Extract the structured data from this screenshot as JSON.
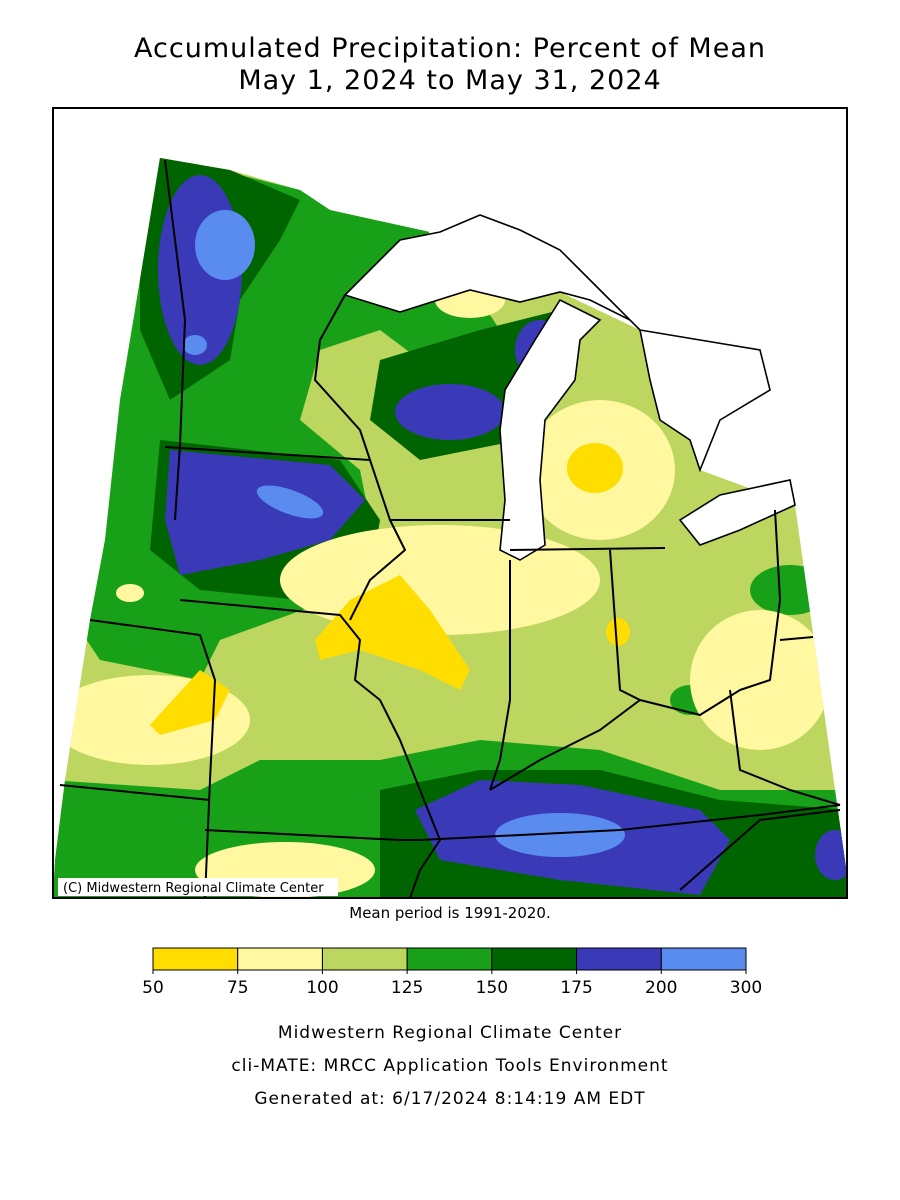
{
  "title": "Accumulated Precipitation: Percent of Mean",
  "subtitle": "May 1, 2024 to May 31, 2024",
  "copyright": "(C) Midwestern Regional Climate Center",
  "note": "Mean period is 1991-2020.",
  "legend": {
    "ticks": [
      50,
      75,
      100,
      125,
      150,
      175,
      200,
      300
    ],
    "colors": [
      "#ffdd00",
      "#fff8a0",
      "#bcd660",
      "#18a018",
      "#006400",
      "#3a3ab8",
      "#5a8cf0"
    ]
  },
  "footer": [
    "Midwestern Regional Climate Center",
    "cli-MATE: MRCC Application Tools Environment",
    "Generated at: 6/17/2024 8:14:19 AM EDT"
  ]
}
